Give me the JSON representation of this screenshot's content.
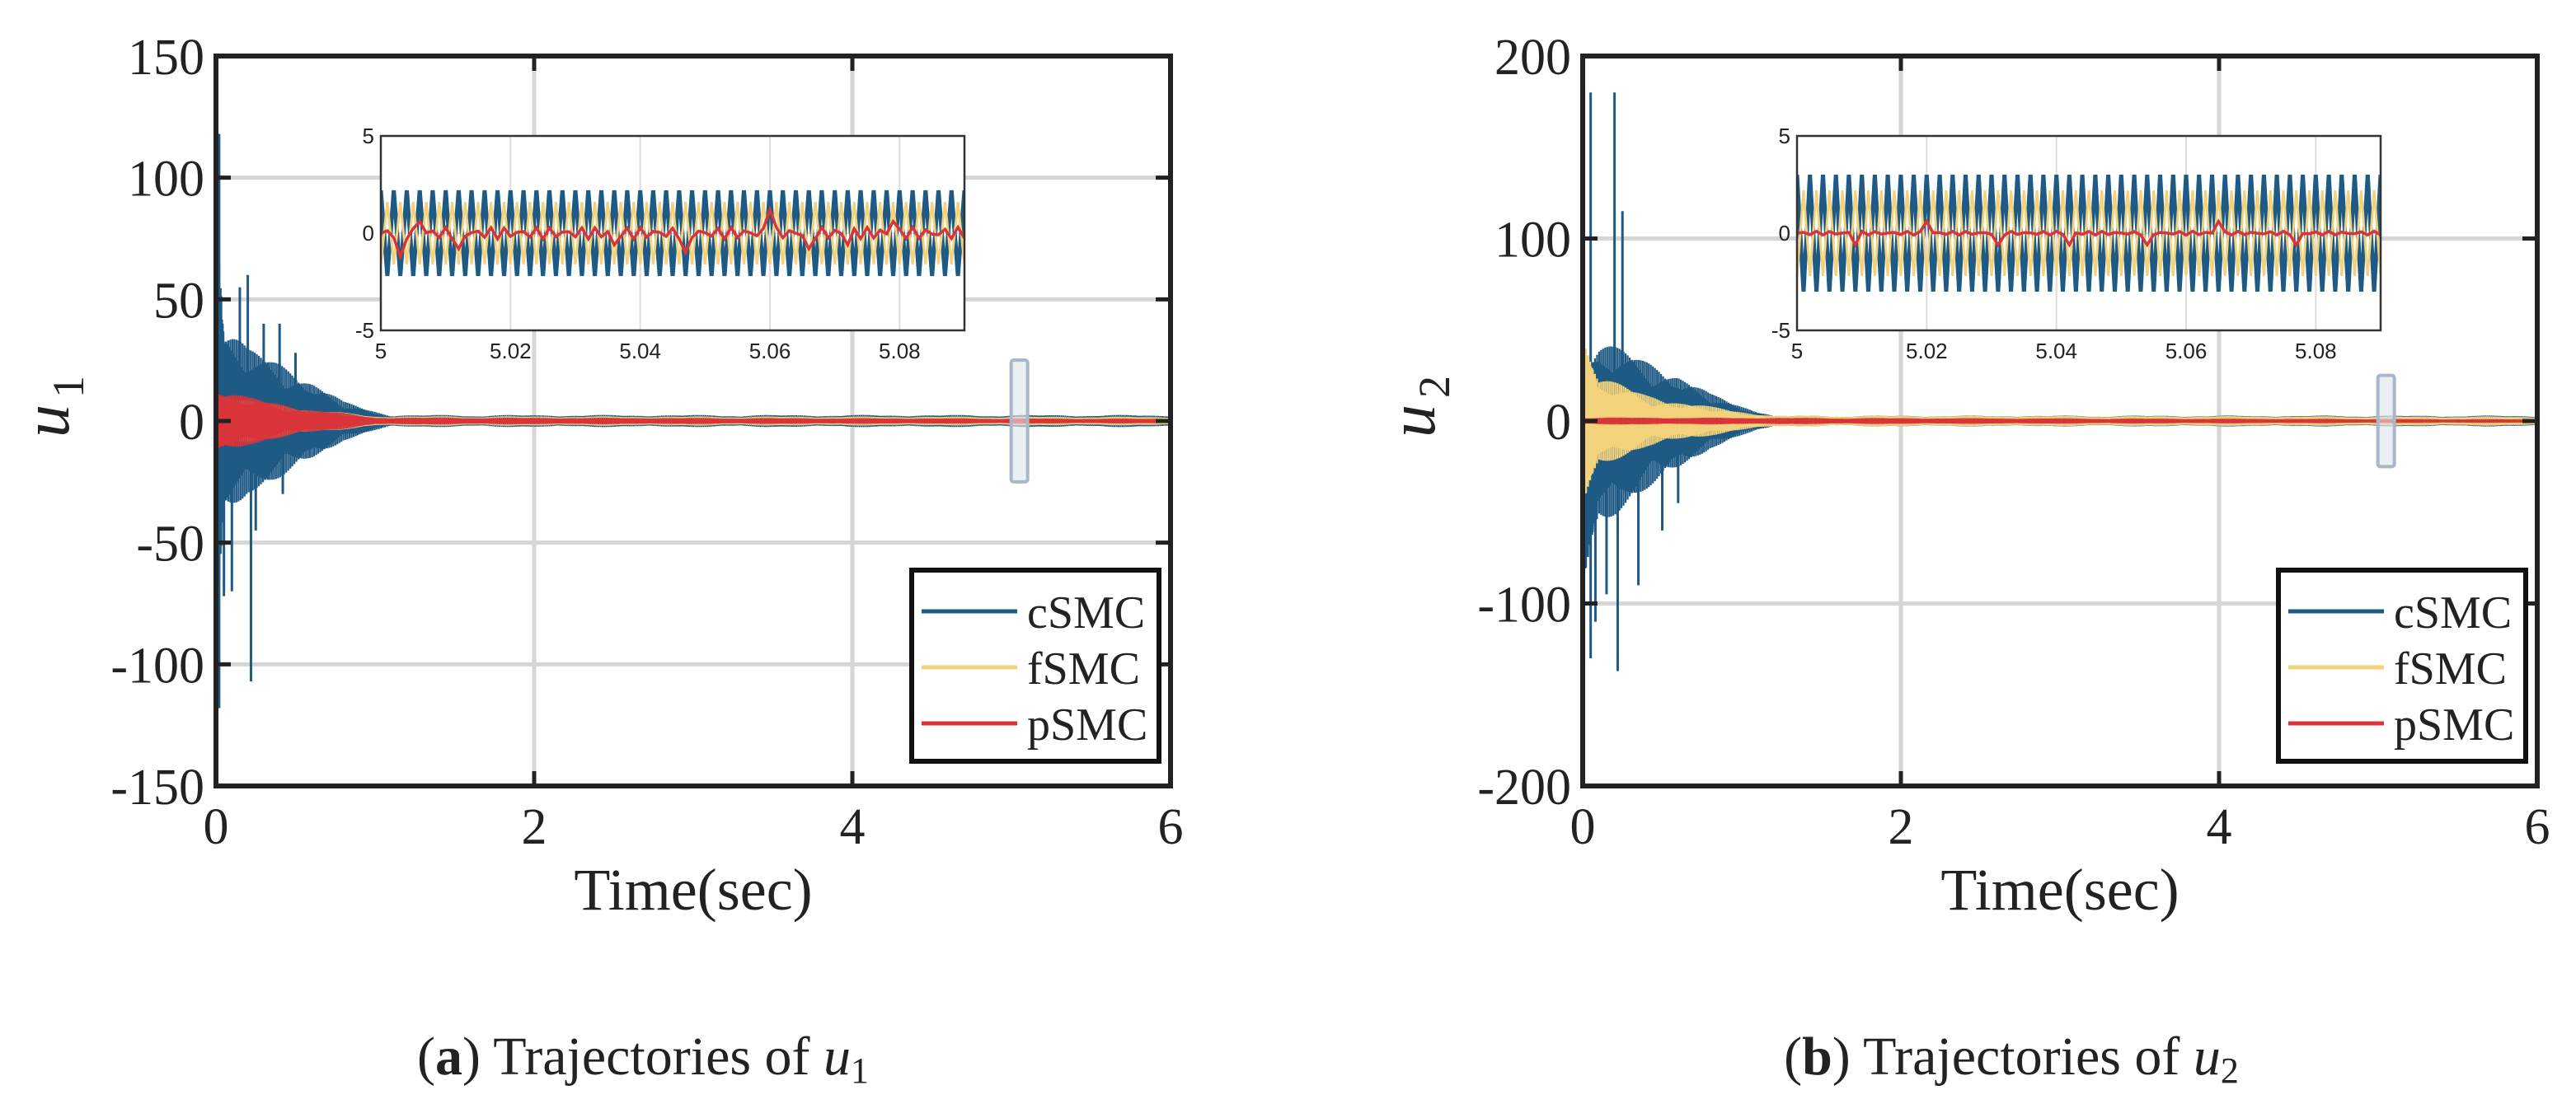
{
  "chart_data": [
    {
      "type": "line",
      "panel_label": "a",
      "caption": "Trajectories of",
      "caption_var": "u",
      "caption_sub": "1",
      "ylabel": "u",
      "ylabel_sub": "1",
      "xlabel": "Time(sec)",
      "xlim": [
        0,
        6
      ],
      "ylim": [
        -150,
        150
      ],
      "xticks": [
        0,
        2,
        4,
        6
      ],
      "xtick_labels": [
        "0",
        "2",
        "4",
        "6"
      ],
      "yticks": [
        150,
        100,
        50,
        0,
        -50,
        -100,
        -150
      ],
      "ytick_labels": [
        "150",
        "100",
        "50",
        "0",
        "-50",
        "-100",
        "-150"
      ],
      "grid": true,
      "legend_position": "bottom-right",
      "series": [
        {
          "name": "cSMC",
          "color": "#1f5a85",
          "envelope": [
            [
              0,
              120,
              -120
            ],
            [
              0.05,
              45,
              -45
            ],
            [
              0.2,
              30,
              -30
            ],
            [
              0.4,
              25,
              -25
            ],
            [
              0.6,
              18,
              -18
            ],
            [
              0.8,
              8,
              -8
            ],
            [
              1.1,
              2.5,
              -2.5
            ],
            [
              6,
              2.5,
              -2.5
            ]
          ],
          "spikes": [
            [
              0.02,
              118
            ],
            [
              0.02,
              -118
            ],
            [
              0.05,
              -72
            ],
            [
              0.1,
              -70
            ],
            [
              0.15,
              55
            ],
            [
              0.2,
              60
            ],
            [
              0.22,
              -107
            ],
            [
              0.25,
              -45
            ],
            [
              0.3,
              40
            ],
            [
              0.4,
              40
            ],
            [
              0.42,
              -30
            ],
            [
              0.5,
              28
            ]
          ]
        },
        {
          "name": "fSMC",
          "color": "#f2d27a",
          "envelope": [
            [
              0,
              10,
              -10
            ],
            [
              0.3,
              8,
              -8
            ],
            [
              0.6,
              5,
              -5
            ],
            [
              1.0,
              2,
              -2
            ],
            [
              6,
              1.8,
              -1.8
            ]
          ],
          "spikes": []
        },
        {
          "name": "pSMC",
          "color": "#d8343a",
          "envelope": [
            [
              0,
              15,
              -15
            ],
            [
              0.2,
              10,
              -10
            ],
            [
              0.5,
              6,
              -6
            ],
            [
              1.0,
              1.5,
              -1.5
            ],
            [
              6,
              1,
              -1
            ]
          ],
          "spikes": []
        }
      ],
      "inset": {
        "xlim": [
          5,
          5.09
        ],
        "ylim": [
          -5,
          5
        ],
        "xticks": [
          5,
          5.02,
          5.04,
          5.06,
          5.08
        ],
        "xtick_labels": [
          "5",
          "5.02",
          "5.04",
          "5.06",
          "5.08"
        ],
        "yticks": [
          5,
          0,
          -5
        ],
        "ytick_labels": [
          "5",
          "0",
          "-5"
        ],
        "cSMC_amplitude": 2.2,
        "fSMC_amplitude": 1.6,
        "pSMC_amplitude": 0.3,
        "pSMC_bumps": [
          [
            5.003,
            -1.2
          ],
          [
            5.006,
            0.6
          ],
          [
            5.012,
            -0.8
          ],
          [
            5.036,
            -0.6
          ],
          [
            5.047,
            -1.0
          ],
          [
            5.06,
            1.2
          ],
          [
            5.066,
            -0.8
          ],
          [
            5.072,
            -0.6
          ],
          [
            5.079,
            0.6
          ]
        ],
        "oscillation_period": 0.002
      },
      "zoom_marker_x": 5.05,
      "zoom_marker_ylim": [
        -25,
        25
      ]
    },
    {
      "type": "line",
      "panel_label": "b",
      "caption": "Trajectories of",
      "caption_var": "u",
      "caption_sub": "2",
      "ylabel": "u",
      "ylabel_sub": "2",
      "xlabel": "Time(sec)",
      "xlim": [
        0,
        6
      ],
      "ylim": [
        -200,
        200
      ],
      "xticks": [
        0,
        2,
        4,
        6
      ],
      "xtick_labels": [
        "0",
        "2",
        "4",
        "6"
      ],
      "yticks": [
        200,
        100,
        0,
        -100,
        -200
      ],
      "ytick_labels": [
        "200",
        "100",
        "0",
        "-100",
        "-200"
      ],
      "grid": true,
      "legend_position": "bottom-right",
      "series": [
        {
          "name": "cSMC",
          "color": "#1f5a85",
          "envelope": [
            [
              0,
              40,
              -120
            ],
            [
              0.1,
              45,
              -60
            ],
            [
              0.3,
              38,
              -45
            ],
            [
              0.6,
              28,
              -30
            ],
            [
              0.8,
              15,
              -15
            ],
            [
              1.2,
              3,
              -3
            ],
            [
              6,
              3,
              -3
            ]
          ],
          "spikes": [
            [
              0.05,
              180
            ],
            [
              0.05,
              -130
            ],
            [
              0.08,
              -110
            ],
            [
              0.15,
              -95
            ],
            [
              0.2,
              180
            ],
            [
              0.22,
              -137
            ],
            [
              0.25,
              115
            ],
            [
              0.35,
              -90
            ],
            [
              0.5,
              -60
            ],
            [
              0.6,
              -45
            ]
          ]
        },
        {
          "name": "fSMC",
          "color": "#f2d27a",
          "envelope": [
            [
              0,
              60,
              -60
            ],
            [
              0.1,
              25,
              -25
            ],
            [
              0.4,
              15,
              -15
            ],
            [
              0.8,
              8,
              -8
            ],
            [
              1.2,
              3,
              -3
            ],
            [
              6,
              2.5,
              -2.5
            ]
          ],
          "spikes": []
        },
        {
          "name": "pSMC",
          "color": "#d8343a",
          "envelope": [
            [
              0,
              2,
              -2
            ],
            [
              6,
              1,
              -1
            ]
          ],
          "spikes": []
        }
      ],
      "inset": {
        "xlim": [
          5,
          5.09
        ],
        "ylim": [
          -5,
          5
        ],
        "xticks": [
          5,
          5.02,
          5.04,
          5.06,
          5.08
        ],
        "xtick_labels": [
          "5",
          "5.02",
          "5.04",
          "5.06",
          "5.08"
        ],
        "yticks": [
          5,
          0,
          -5
        ],
        "ytick_labels": [
          "5",
          "0",
          "-5"
        ],
        "cSMC_amplitude": 3.0,
        "fSMC_amplitude": 2.2,
        "pSMC_amplitude": 0.1,
        "pSMC_bumps": [
          [
            5.009,
            -0.6
          ],
          [
            5.02,
            0.6
          ],
          [
            5.031,
            -0.6
          ],
          [
            5.042,
            -0.6
          ],
          [
            5.054,
            -0.6
          ],
          [
            5.065,
            0.6
          ],
          [
            5.077,
            -0.6
          ]
        ],
        "oscillation_period": 0.002
      },
      "zoom_marker_x": 5.05,
      "zoom_marker_ylim": [
        -25,
        25
      ]
    }
  ]
}
